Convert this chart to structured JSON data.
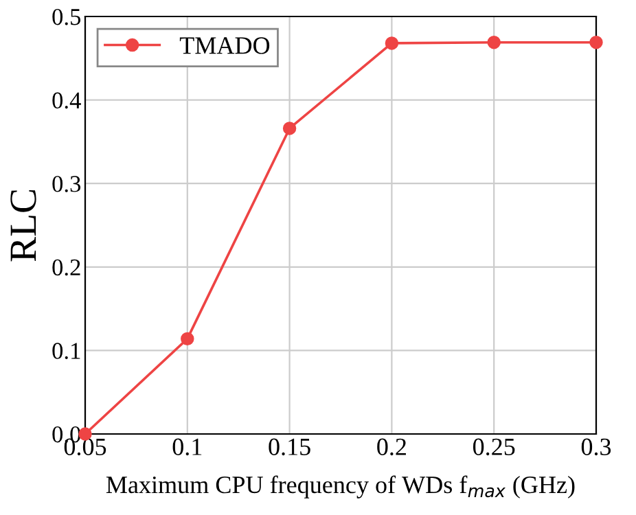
{
  "chart_data": {
    "type": "line",
    "xlabel": "Maximum CPU frequency of WDs f$_{max}$ (GHz)",
    "ylabel": "RLC",
    "x": [
      0.05,
      0.1,
      0.15,
      0.2,
      0.25,
      0.3
    ],
    "series": [
      {
        "name": "TMADO",
        "color": "#ee4444",
        "values": [
          0,
          0.114,
          0.366,
          0.468,
          0.469,
          0.469
        ]
      }
    ],
    "xlim": [
      0.05,
      0.3
    ],
    "ylim": [
      0,
      0.5
    ],
    "xticks": [
      0.05,
      0.1,
      0.15,
      0.2,
      0.25,
      0.3
    ],
    "yticks": [
      {
        "value": 0,
        "label": "0.0"
      },
      0.1,
      0.2,
      0.3,
      0.4,
      0.5
    ],
    "grid": true,
    "legend": "top left",
    "marker": "circle",
    "line_style": "solid"
  }
}
